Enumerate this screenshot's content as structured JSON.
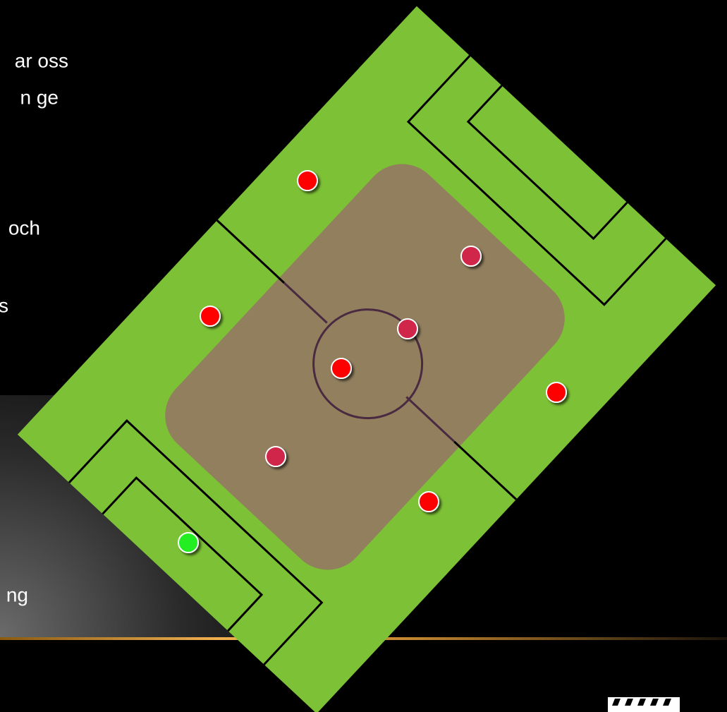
{
  "slide": {
    "text_fragments": [
      "ar oss",
      "n ge",
      "och",
      "s",
      "ng"
    ]
  }
}
